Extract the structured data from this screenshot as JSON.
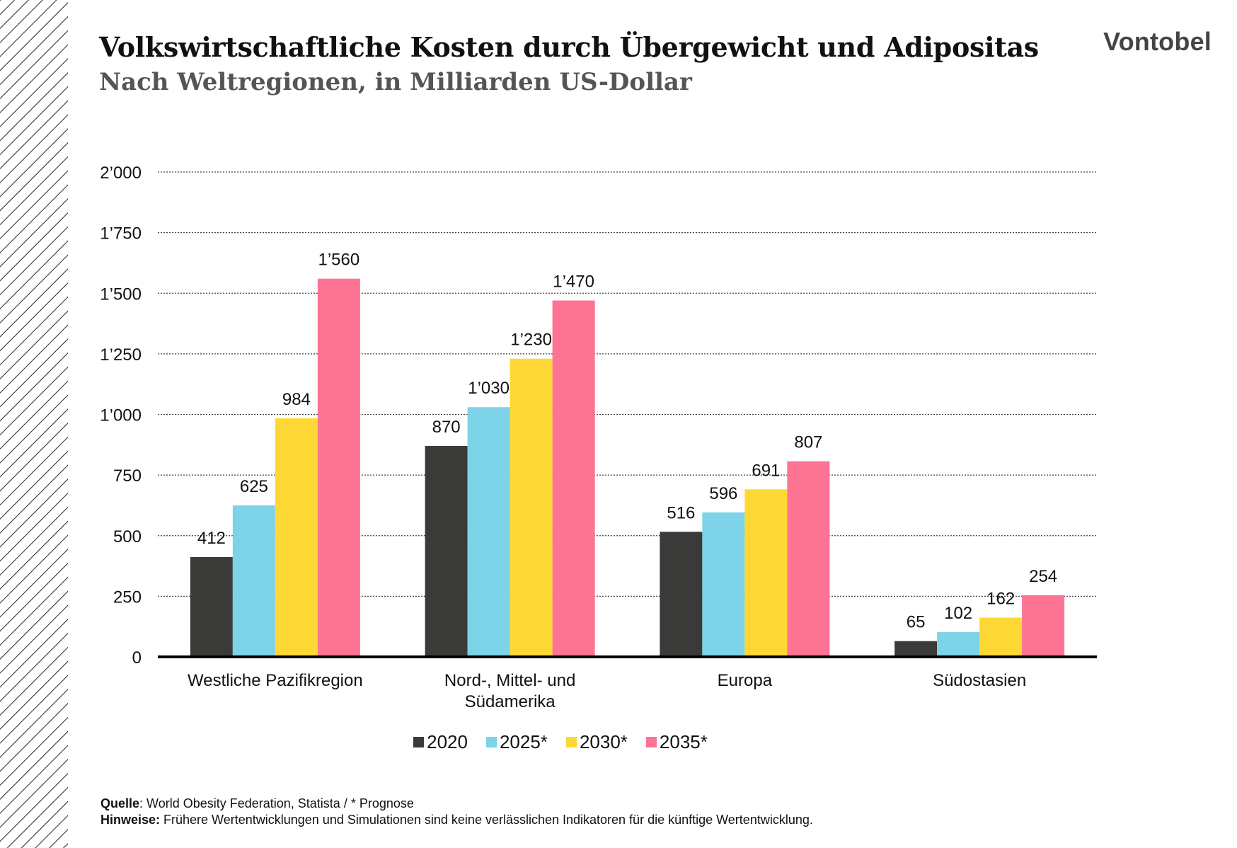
{
  "header": {
    "title": "Volkswirtschaftliche Kosten durch Übergewicht und Adipositas",
    "subtitle": "Nach Weltregionen, in Milliarden US-Dollar",
    "logo": "Vontobel"
  },
  "chart_data": {
    "type": "bar",
    "title": "Volkswirtschaftliche Kosten durch Übergewicht und Adipositas",
    "subtitle": "Nach Weltregionen, in Milliarden US-Dollar",
    "categories": [
      "Westliche Pazifikregion",
      "Nord-, Mittel- und Südamerika",
      "Europa",
      "Südostasien"
    ],
    "category_lines": [
      [
        "Westliche Pazifikregion"
      ],
      [
        "Nord-, Mittel- und",
        "Südamerika"
      ],
      [
        "Europa"
      ],
      [
        "Südostasien"
      ]
    ],
    "series": [
      {
        "name": "2020",
        "values": [
          412,
          870,
          516,
          65
        ],
        "labels": [
          "412",
          "870",
          "516",
          "65"
        ],
        "color": "#3a3b38"
      },
      {
        "name": "2025*",
        "values": [
          625,
          1030,
          596,
          102
        ],
        "labels": [
          "625",
          "1’030",
          "596",
          "102"
        ],
        "color": "#7dd3e8"
      },
      {
        "name": "2030*",
        "values": [
          984,
          1230,
          691,
          162
        ],
        "labels": [
          "984",
          "1’230",
          "691",
          "162"
        ],
        "color": "#fdd835"
      },
      {
        "name": "2035*",
        "values": [
          1560,
          1470,
          807,
          254
        ],
        "labels": [
          "1’560",
          "1’470",
          "807",
          "254"
        ],
        "color": "#fd7393"
      }
    ],
    "ylim": [
      0,
      2000
    ],
    "yticks": [
      0,
      250,
      500,
      750,
      1000,
      1250,
      1500,
      1750,
      2000
    ],
    "ytick_labels": [
      "0",
      "250",
      "500",
      "750",
      "1’000",
      "1’250",
      "1’500",
      "1’750",
      "2’000"
    ],
    "grid": true,
    "legend_position": "bottom-center"
  },
  "footer": {
    "source_label": "Quelle",
    "source_text": ": World Obesity Federation, Statista / * Prognose",
    "note_label": "Hinweise:",
    "note_text": " Frühere Wertentwicklungen und Simulationen sind keine verlässlichen Indikatoren für die künftige Wertentwicklung."
  }
}
